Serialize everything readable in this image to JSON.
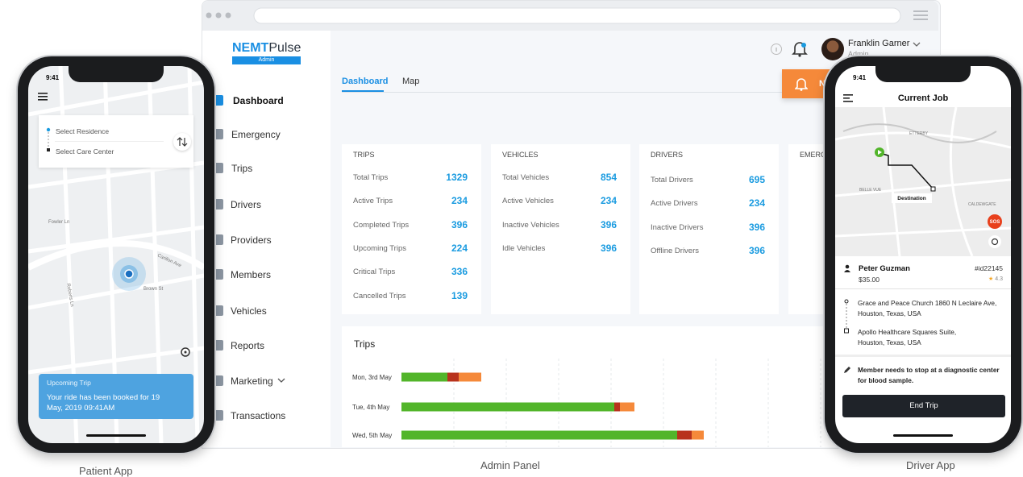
{
  "captions": [
    "Patient App",
    "Admin Panel",
    "Driver App"
  ],
  "admin": {
    "logo_bold": "NEMT",
    "logo_rest": "Pulse",
    "logo_sub": "Admin",
    "user": {
      "name": "Franklin Garner",
      "role": "Admin"
    },
    "tabs": [
      "Dashboard",
      "Map"
    ],
    "notify_button": "N",
    "menu": [
      "Dashboard",
      "Emergency",
      "Trips",
      "Drivers",
      "Providers",
      "Members",
      "Vehicles",
      "Reports",
      "Marketing",
      "Transactions"
    ],
    "cards": [
      {
        "title": "TRIPS",
        "rows": [
          {
            "label": "Total Trips",
            "value": 1329
          },
          {
            "label": "Active Trips",
            "value": 234
          },
          {
            "label": "Completed Trips",
            "value": 396
          },
          {
            "label": "Upcoming Trips",
            "value": 224
          },
          {
            "label": "Critical Trips",
            "value": 336
          },
          {
            "label": "Cancelled Trips",
            "value": 139
          }
        ]
      },
      {
        "title": "VEHICLES",
        "rows": [
          {
            "label": "Total Vehicles",
            "value": 854
          },
          {
            "label": "Active Vehicles",
            "value": 234
          },
          {
            "label": "Inactive Vehicles",
            "value": 396
          },
          {
            "label": "Idle Vehicles",
            "value": 396
          }
        ]
      },
      {
        "title": "DRIVERS",
        "rows": [
          {
            "label": "Total Drivers",
            "value": 695
          },
          {
            "label": "Active Drivers",
            "value": 234
          },
          {
            "label": "Inactive Drivers",
            "value": 396
          },
          {
            "label": "Offline Drivers",
            "value": 396
          }
        ]
      },
      {
        "title": "EMERG",
        "rows": []
      }
    ],
    "chart": {
      "type": "bar",
      "title": "Trips",
      "categories": [
        "Mon, 3rd May",
        "Tue, 4th May",
        "Wed, 5th May"
      ],
      "stacks": [
        [
          57,
          14,
          28
        ],
        [
          264,
          7,
          18
        ],
        [
          342,
          18,
          15
        ]
      ],
      "colors": [
        "#52b52a",
        "#b8321c",
        "#f5893a"
      ],
      "xlim": [
        0,
        520
      ],
      "grid": true
    }
  },
  "patient": {
    "time": "9:41",
    "pickup": "Select Residence",
    "dropoff": "Select Care Center",
    "streets": [
      "Carillon Ave",
      "Fowler Ln",
      "Roberts Ln",
      "Brown St"
    ],
    "notice_title": "Upcoming Trip",
    "notice_text": "Your ride has been booked for 19 May, 2019 09:41AM"
  },
  "driver": {
    "time": "9:41",
    "title": "Current Job",
    "districts": [
      "ETTERBY",
      "BELLE VUE",
      "CALDEWGATE"
    ],
    "destination": "Destination",
    "sos": "SOS",
    "member": "Peter Guzman",
    "trip_id": "#id22145",
    "fare": "$35.00",
    "rating": "4.3",
    "pickup_address": "Grace and Peace Church 1860 N Leclaire Ave, Houston, Texas, USA",
    "drop_address": "Apollo Healthcare Squares Suite, Houston, Texas, USA",
    "note": "Member needs to stop at a diagnostic center for blood sample.",
    "button": "End Trip"
  }
}
